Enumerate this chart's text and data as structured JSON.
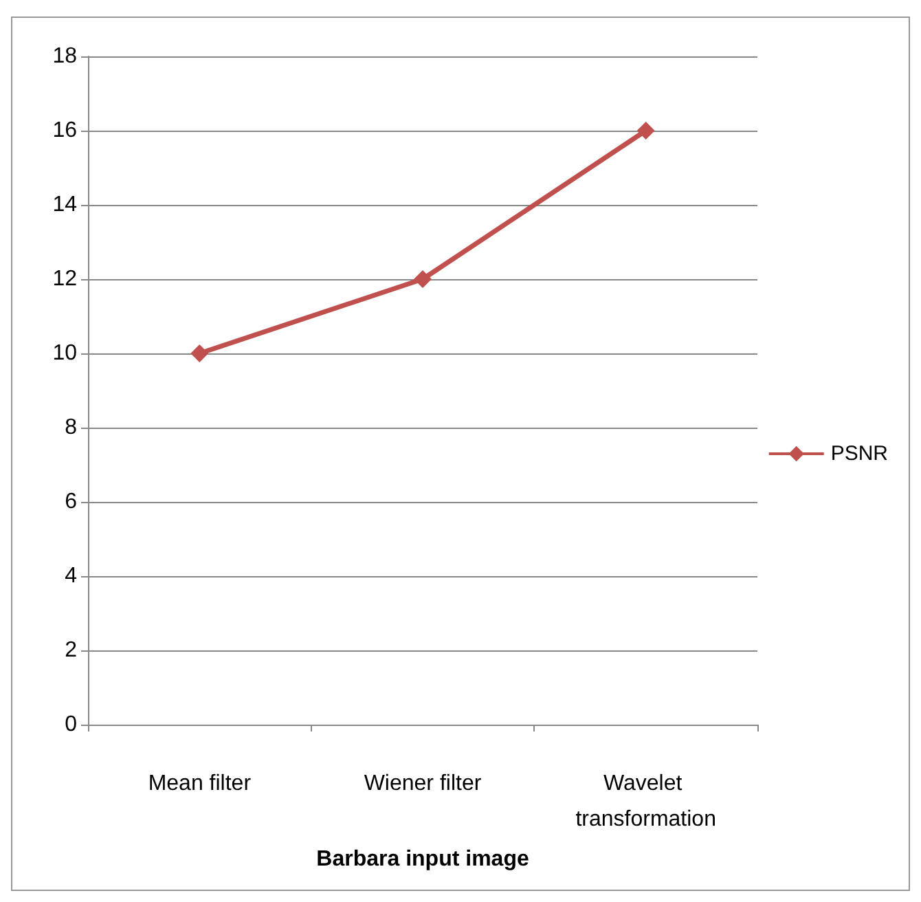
{
  "chart_data": {
    "type": "line",
    "xlabel": "Barbara input image",
    "categories": [
      "Mean filter",
      "Wiener filter",
      "Wavelet transformation"
    ],
    "series": [
      {
        "name": "PSNR",
        "color": "#c0504d",
        "values": [
          10,
          12,
          16
        ]
      }
    ],
    "ylim": [
      0,
      18
    ],
    "yticks": [
      0,
      2,
      4,
      6,
      8,
      10,
      12,
      14,
      16,
      18
    ],
    "grid": "y",
    "legend": "right",
    "marker": "diamond",
    "line_style": "solid"
  }
}
